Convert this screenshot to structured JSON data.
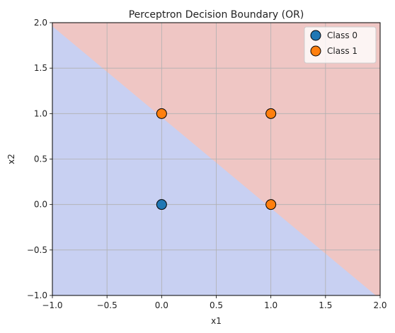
{
  "chart_data": {
    "type": "scatter",
    "title": "Perceptron Decision Boundary (OR)",
    "xlabel": "x1",
    "ylabel": "x2",
    "xlim": [
      -1.0,
      2.0
    ],
    "ylim": [
      -1.0,
      2.0
    ],
    "xticks": [
      "−1.0",
      "−0.5",
      "0.0",
      "0.5",
      "1.0",
      "1.5",
      "2.0"
    ],
    "xtick_values": [
      -1.0,
      -0.5,
      0.0,
      0.5,
      1.0,
      1.5,
      2.0
    ],
    "yticks": [
      "−1.0",
      "−0.5",
      "0.0",
      "0.5",
      "1.0",
      "1.5",
      "2.0"
    ],
    "ytick_values": [
      -1.0,
      -0.5,
      0.0,
      0.5,
      1.0,
      1.5,
      2.0
    ],
    "grid": true,
    "legend_position": "top-right",
    "decision_boundary": {
      "line": "x1 + x2 = 0.96",
      "region_below_color": "#c8d0f2",
      "region_above_color": "#efc6c4",
      "boundary_points": [
        [
          -1.0,
          1.96
        ],
        [
          2.0,
          -1.04
        ]
      ]
    },
    "series": [
      {
        "name": "Class 0",
        "color": "#1f77b4",
        "points": [
          [
            0,
            0
          ]
        ]
      },
      {
        "name": "Class 1",
        "color": "#ff7f0e",
        "points": [
          [
            0,
            1
          ],
          [
            1,
            0
          ],
          [
            1,
            1
          ]
        ]
      }
    ]
  }
}
